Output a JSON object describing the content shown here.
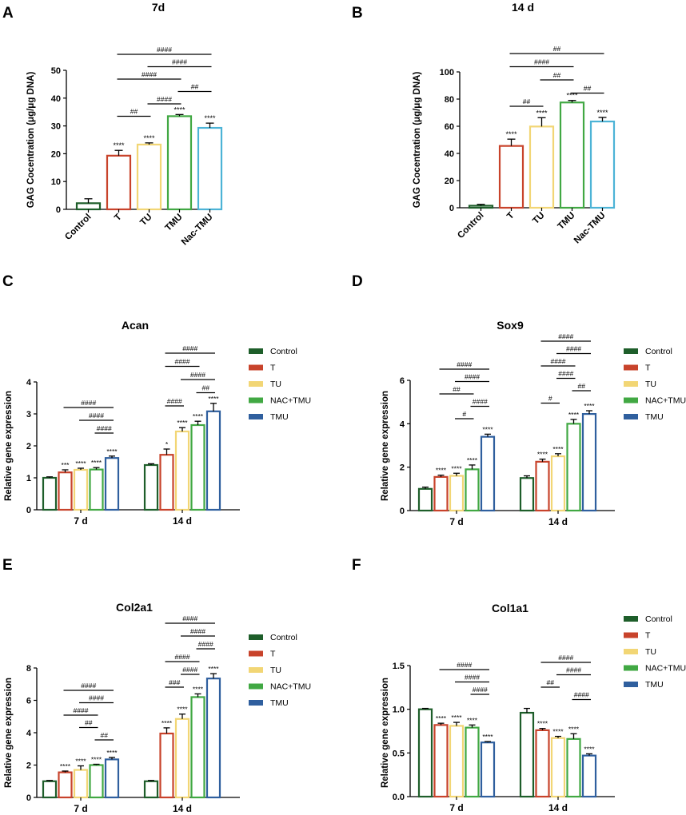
{
  "colors": {
    "Control": "#1e5e2a",
    "T": "#c8432b",
    "TU": "#f2d675",
    "TMU": "#41a843",
    "Nac-TMU": "#4cb3d6",
    "NAC+TMU": "#41a843",
    "TMU_blue": "#2f5f9e",
    "ink": "#000000"
  },
  "chart_data": [
    {
      "id": "A",
      "type": "bar",
      "panel_label": "A",
      "title": "7d",
      "ylabel": "GAG Cocentration (μg/μg DNA)",
      "ylim": [
        0,
        50
      ],
      "yticks": [
        "0",
        "10",
        "20",
        "30",
        "40",
        "50"
      ],
      "categories": [
        "Control",
        "T",
        "TU",
        "TMU",
        "Nac-TMU"
      ],
      "values": [
        2.2,
        19.3,
        23.3,
        33.5,
        29.3
      ],
      "errors": [
        1.6,
        1.9,
        0.6,
        0.6,
        1.7
      ],
      "stars": [
        "",
        "****",
        "****",
        "****",
        "****"
      ],
      "brackets": [
        {
          "from": 1,
          "to": 4,
          "label": "####"
        },
        {
          "from": 2,
          "to": 4,
          "label": "####"
        },
        {
          "from": 1,
          "to": 3,
          "label": "####"
        },
        {
          "from": 3,
          "to": 4,
          "label": "##"
        },
        {
          "from": 2,
          "to": 3,
          "label": "####"
        },
        {
          "from": 1,
          "to": 2,
          "label": "##"
        }
      ]
    },
    {
      "id": "B",
      "type": "bar",
      "panel_label": "B",
      "title": "14 d",
      "ylabel": "GAG Cocentration (μg/μg DNA)",
      "ylim": [
        0,
        100
      ],
      "yticks": [
        "0",
        "20",
        "40",
        "60",
        "80",
        "100"
      ],
      "categories": [
        "Control",
        "T",
        "TU",
        "TMU",
        "Nac-TMU"
      ],
      "values": [
        1.5,
        45.5,
        59.8,
        77.5,
        63.5
      ],
      "errors": [
        1.0,
        5.0,
        6.5,
        1.5,
        3.0
      ],
      "stars": [
        "",
        "****",
        "****",
        "****",
        "****"
      ],
      "brackets": [
        {
          "from": 1,
          "to": 4,
          "label": "##"
        },
        {
          "from": 1,
          "to": 3,
          "label": "####"
        },
        {
          "from": 2,
          "to": 3,
          "label": "##"
        },
        {
          "from": 3,
          "to": 4,
          "label": "##"
        },
        {
          "from": 1,
          "to": 2,
          "label": "##"
        }
      ]
    },
    {
      "id": "C",
      "type": "grouped_bar",
      "panel_label": "C",
      "title": "Acan",
      "ylabel": "Relative gene expression",
      "ylim": [
        0,
        4
      ],
      "yticks": [
        "0",
        "1",
        "2",
        "3",
        "4"
      ],
      "groups": [
        "7 d",
        "14 d"
      ],
      "legend": [
        "Control",
        "T",
        "TU",
        "NAC+TMU",
        "TMU"
      ],
      "series": [
        {
          "name": "Control",
          "values": [
            1.0,
            1.4
          ],
          "errors": [
            0.03,
            0.04
          ],
          "stars": [
            "",
            ""
          ]
        },
        {
          "name": "T",
          "values": [
            1.17,
            1.72
          ],
          "errors": [
            0.08,
            0.18
          ],
          "stars": [
            "***",
            "*"
          ]
        },
        {
          "name": "TU",
          "values": [
            1.25,
            2.45
          ],
          "errors": [
            0.05,
            0.12
          ],
          "stars": [
            "****",
            "****"
          ]
        },
        {
          "name": "NAC+TMU",
          "values": [
            1.26,
            2.65
          ],
          "errors": [
            0.06,
            0.12
          ],
          "stars": [
            "****",
            "****"
          ]
        },
        {
          "name": "TMU",
          "values": [
            1.62,
            3.08
          ],
          "errors": [
            0.06,
            0.25
          ],
          "stars": [
            "****",
            "****"
          ]
        }
      ],
      "brackets": [
        {
          "group": 0,
          "from": 1,
          "to": 4,
          "label": "####"
        },
        {
          "group": 0,
          "from": 2,
          "to": 4,
          "label": "####"
        },
        {
          "group": 0,
          "from": 3,
          "to": 4,
          "label": "####"
        },
        {
          "group": 1,
          "from": 1,
          "to": 4,
          "label": "####"
        },
        {
          "group": 1,
          "from": 1,
          "to": 3,
          "label": "####"
        },
        {
          "group": 1,
          "from": 2,
          "to": 4,
          "label": "####"
        },
        {
          "group": 1,
          "from": 3,
          "to": 4,
          "label": "##"
        },
        {
          "group": 1,
          "from": 1,
          "to": 2,
          "label": "####"
        }
      ]
    },
    {
      "id": "D",
      "type": "grouped_bar",
      "panel_label": "D",
      "title": "Sox9",
      "ylabel": "Relative gene expression",
      "ylim": [
        0,
        6
      ],
      "yticks": [
        "0",
        "2",
        "4",
        "6"
      ],
      "groups": [
        "7 d",
        "14 d"
      ],
      "legend": [
        "Control",
        "T",
        "TU",
        "NAC+TMU",
        "TMU"
      ],
      "series": [
        {
          "name": "Control",
          "values": [
            1.0,
            1.5
          ],
          "errors": [
            0.08,
            0.1
          ],
          "stars": [
            "",
            ""
          ]
        },
        {
          "name": "T",
          "values": [
            1.55,
            2.25
          ],
          "errors": [
            0.08,
            0.12
          ],
          "stars": [
            "****",
            "****"
          ]
        },
        {
          "name": "TU",
          "values": [
            1.6,
            2.5
          ],
          "errors": [
            0.12,
            0.12
          ],
          "stars": [
            "****",
            "****"
          ]
        },
        {
          "name": "NAC+TMU",
          "values": [
            1.9,
            4.0
          ],
          "errors": [
            0.2,
            0.2
          ],
          "stars": [
            "****",
            "****"
          ]
        },
        {
          "name": "TMU",
          "values": [
            3.4,
            4.45
          ],
          "errors": [
            0.12,
            0.15
          ],
          "stars": [
            "****",
            "****"
          ]
        }
      ],
      "brackets": [
        {
          "group": 0,
          "from": 1,
          "to": 4,
          "label": "####"
        },
        {
          "group": 0,
          "from": 2,
          "to": 4,
          "label": "####"
        },
        {
          "group": 0,
          "from": 1,
          "to": 3,
          "label": "##"
        },
        {
          "group": 0,
          "from": 3,
          "to": 4,
          "label": "####"
        },
        {
          "group": 0,
          "from": 2,
          "to": 3,
          "label": "#"
        },
        {
          "group": 1,
          "from": 1,
          "to": 4,
          "label": "####"
        },
        {
          "group": 1,
          "from": 2,
          "to": 4,
          "label": "####"
        },
        {
          "group": 1,
          "from": 1,
          "to": 3,
          "label": "####"
        },
        {
          "group": 1,
          "from": 2,
          "to": 3,
          "label": "####"
        },
        {
          "group": 1,
          "from": 3,
          "to": 4,
          "label": "##"
        },
        {
          "group": 1,
          "from": 1,
          "to": 2,
          "label": "#"
        }
      ]
    },
    {
      "id": "E",
      "type": "grouped_bar",
      "panel_label": "E",
      "title": "Col2a1",
      "ylabel": "Relative gene expression",
      "ylim": [
        0,
        8
      ],
      "yticks": [
        "0",
        "2",
        "4",
        "6",
        "8"
      ],
      "groups": [
        "7 d",
        "14 d"
      ],
      "legend": [
        "Control",
        "T",
        "TU",
        "NAC+TMU",
        "TMU"
      ],
      "series": [
        {
          "name": "Control",
          "values": [
            1.0,
            1.0
          ],
          "errors": [
            0.05,
            0.05
          ],
          "stars": [
            "",
            ""
          ]
        },
        {
          "name": "T",
          "values": [
            1.55,
            3.95
          ],
          "errors": [
            0.08,
            0.35
          ],
          "stars": [
            "****",
            "****"
          ]
        },
        {
          "name": "TU",
          "values": [
            1.7,
            4.85
          ],
          "errors": [
            0.25,
            0.3
          ],
          "stars": [
            "****",
            "****"
          ]
        },
        {
          "name": "NAC+TMU",
          "values": [
            2.0,
            6.2
          ],
          "errors": [
            0.05,
            0.2
          ],
          "stars": [
            "****",
            "****"
          ]
        },
        {
          "name": "TMU",
          "values": [
            2.35,
            7.35
          ],
          "errors": [
            0.12,
            0.3
          ],
          "stars": [
            "****",
            "****"
          ]
        }
      ],
      "brackets": [
        {
          "group": 0,
          "from": 1,
          "to": 4,
          "label": "####"
        },
        {
          "group": 0,
          "from": 2,
          "to": 4,
          "label": "####"
        },
        {
          "group": 0,
          "from": 1,
          "to": 3,
          "label": "####"
        },
        {
          "group": 0,
          "from": 2,
          "to": 3,
          "label": "##"
        },
        {
          "group": 0,
          "from": 3,
          "to": 4,
          "label": "##"
        },
        {
          "group": 1,
          "from": 1,
          "to": 4,
          "label": "####"
        },
        {
          "group": 1,
          "from": 2,
          "to": 4,
          "label": "####"
        },
        {
          "group": 1,
          "from": 3,
          "to": 4,
          "label": "####"
        },
        {
          "group": 1,
          "from": 1,
          "to": 3,
          "label": "####"
        },
        {
          "group": 1,
          "from": 2,
          "to": 3,
          "label": "####"
        },
        {
          "group": 1,
          "from": 1,
          "to": 2,
          "label": "###"
        }
      ]
    },
    {
      "id": "F",
      "type": "grouped_bar",
      "panel_label": "F",
      "title": "Col1a1",
      "ylabel": "Relative gene expression",
      "ylim": [
        0,
        1.5
      ],
      "yticks": [
        "0.0",
        "0.5",
        "1.0",
        "1.5"
      ],
      "groups": [
        "7 d",
        "14 d"
      ],
      "legend": [
        "Control",
        "T",
        "TU",
        "NAC+TMU",
        "TMU"
      ],
      "series": [
        {
          "name": "Control",
          "values": [
            1.0,
            0.96
          ],
          "errors": [
            0.01,
            0.05
          ],
          "stars": [
            "",
            ""
          ]
        },
        {
          "name": "T",
          "values": [
            0.82,
            0.76
          ],
          "errors": [
            0.02,
            0.02
          ],
          "stars": [
            "****",
            "****"
          ]
        },
        {
          "name": "TU",
          "values": [
            0.81,
            0.67
          ],
          "errors": [
            0.04,
            0.02
          ],
          "stars": [
            "****",
            "****"
          ]
        },
        {
          "name": "NAC+TMU",
          "values": [
            0.79,
            0.66
          ],
          "errors": [
            0.03,
            0.06
          ],
          "stars": [
            "****",
            "****"
          ]
        },
        {
          "name": "TMU",
          "values": [
            0.62,
            0.47
          ],
          "errors": [
            0.01,
            0.02
          ],
          "stars": [
            "****",
            "****"
          ]
        }
      ],
      "brackets": [
        {
          "group": 0,
          "from": 1,
          "to": 4,
          "label": "####"
        },
        {
          "group": 0,
          "from": 2,
          "to": 4,
          "label": "####"
        },
        {
          "group": 0,
          "from": 3,
          "to": 4,
          "label": "####"
        },
        {
          "group": 1,
          "from": 1,
          "to": 4,
          "label": "####"
        },
        {
          "group": 1,
          "from": 2,
          "to": 4,
          "label": "####"
        },
        {
          "group": 1,
          "from": 1,
          "to": 2,
          "label": "##"
        },
        {
          "group": 1,
          "from": 3,
          "to": 4,
          "label": "####"
        }
      ]
    }
  ]
}
